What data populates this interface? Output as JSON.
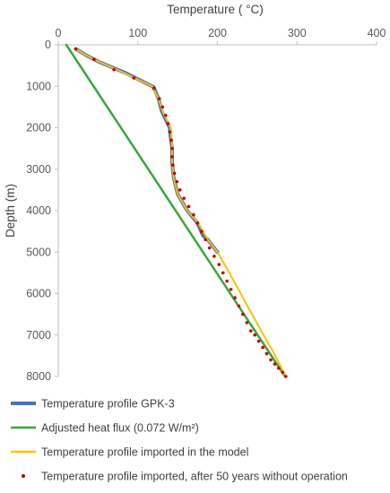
{
  "chart_data": {
    "type": "line",
    "xlabel": "Temperature ( °C)",
    "ylabel": "Depth (m)",
    "xlim": [
      0,
      400
    ],
    "ylim": [
      0,
      8000
    ],
    "y_inverted": true,
    "x_axis_position": "top",
    "x_ticks": [
      "0",
      "100",
      "200",
      "300",
      "400"
    ],
    "y_ticks": [
      "0",
      "1000",
      "2000",
      "3000",
      "4000",
      "5000",
      "6000",
      "7000",
      "8000"
    ],
    "grid": false,
    "legend_position": "bottom",
    "series": [
      {
        "name": "Temperature profile GPK-3",
        "style": "line",
        "color": "#4472C4",
        "x": [
          22,
          35,
          50,
          52,
          85,
          120,
          126,
          130,
          135,
          140,
          141,
          143,
          143,
          145,
          150,
          162,
          175,
          182,
          188,
          200
        ],
        "y": [
          100,
          250,
          400,
          420,
          680,
          1020,
          1300,
          1600,
          1800,
          2000,
          2200,
          2500,
          2800,
          3200,
          3600,
          4000,
          4300,
          4600,
          4700,
          5000
        ]
      },
      {
        "name": "Adjusted heat flux (0.072 W/m²)",
        "style": "line",
        "color": "#3EA33E",
        "x": [
          10,
          285
        ],
        "y": [
          0,
          8000
        ]
      },
      {
        "name": "Temperature profile imported in the model",
        "style": "line",
        "color": "#FFC000",
        "x": [
          22,
          35,
          50,
          80,
          118,
          126,
          131,
          136,
          141,
          143,
          143,
          145,
          150,
          162,
          176,
          188,
          200,
          215,
          235,
          255,
          270,
          286
        ],
        "y": [
          100,
          250,
          400,
          650,
          1000,
          1300,
          1600,
          1800,
          2000,
          2400,
          2800,
          3200,
          3600,
          4000,
          4300,
          4700,
          5000,
          5500,
          6200,
          6900,
          7400,
          8000
        ]
      },
      {
        "name": "Temperature profile imported, after 50 years without operation",
        "style": "scatter",
        "color": "#C00000",
        "x": [
          22,
          45,
          70,
          95,
          120,
          127,
          131,
          135,
          138,
          140,
          142,
          143,
          143,
          144,
          146,
          149,
          153,
          158,
          164,
          170,
          175,
          180,
          185,
          190,
          196,
          202,
          207,
          212,
          217,
          222,
          227,
          232,
          237,
          242,
          247,
          252,
          257,
          262,
          267,
          272,
          277,
          282,
          286
        ],
        "y": [
          100,
          350,
          600,
          800,
          1050,
          1300,
          1500,
          1700,
          1900,
          2100,
          2300,
          2500,
          2700,
          2900,
          3100,
          3300,
          3500,
          3700,
          3900,
          4100,
          4300,
          4500,
          4700,
          4900,
          5100,
          5300,
          5500,
          5700,
          5900,
          6100,
          6300,
          6500,
          6700,
          6900,
          7000,
          7150,
          7300,
          7450,
          7600,
          7700,
          7800,
          7900,
          8000
        ]
      }
    ]
  }
}
